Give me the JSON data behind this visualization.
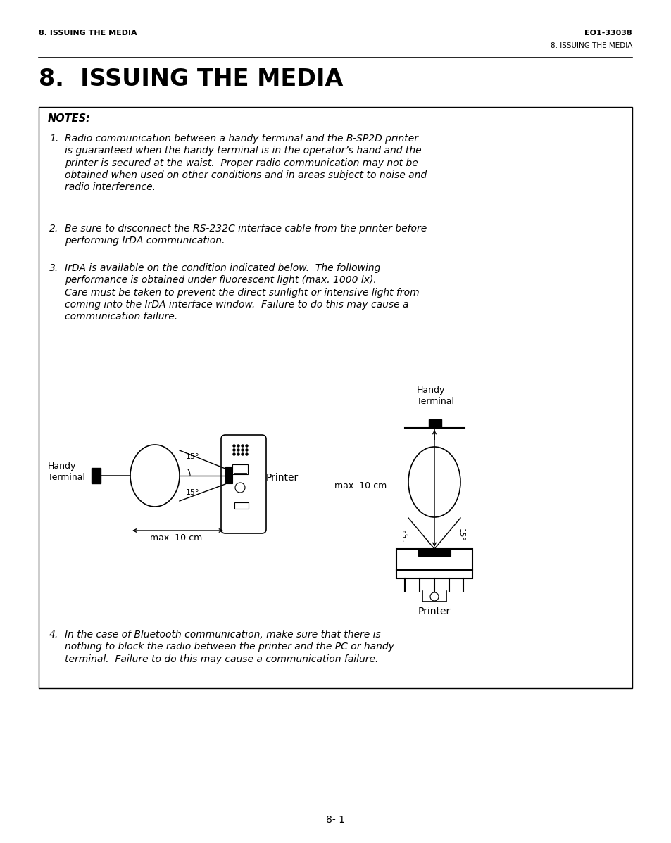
{
  "page_title": "8.  ISSUING THE MEDIA",
  "header_left": "8. ISSUING THE MEDIA",
  "header_right": "EO1-33038",
  "subheader_right": "8. ISSUING THE MEDIA",
  "footer": "8- 1",
  "bg_color": "#ffffff"
}
